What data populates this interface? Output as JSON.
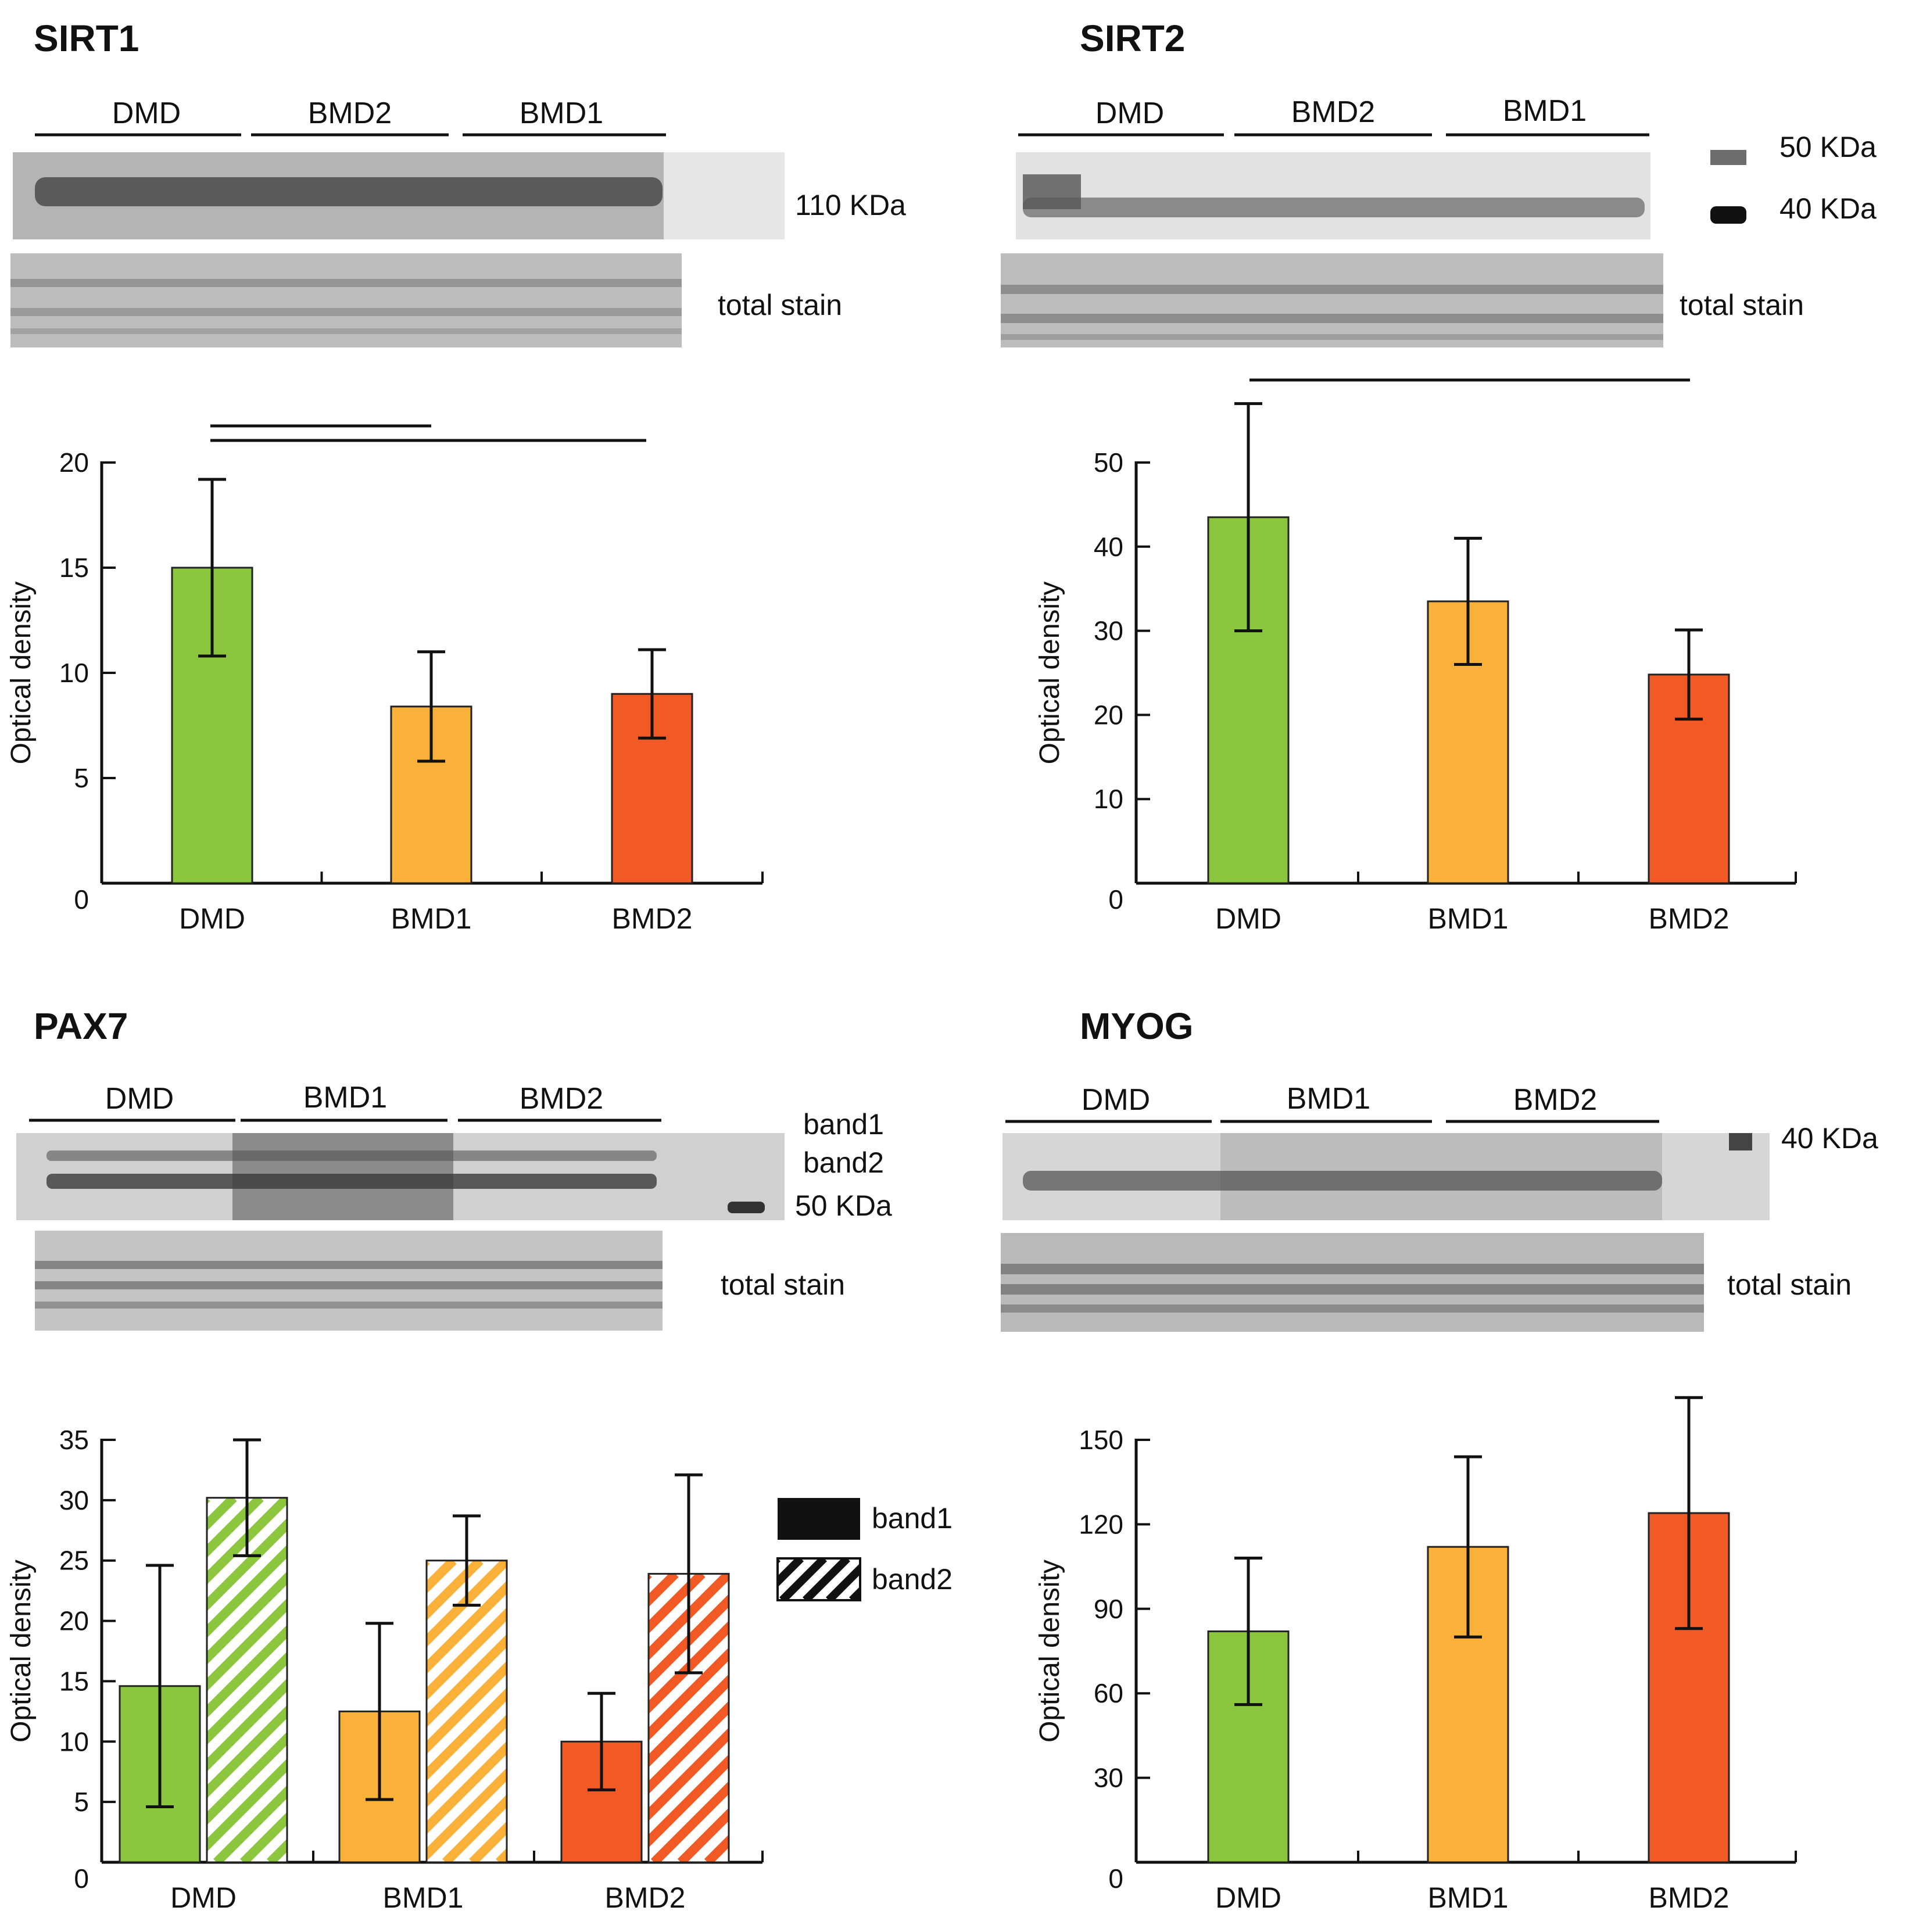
{
  "colors": {
    "DMD": "#8cc63f",
    "BMD1": "#f9b13a",
    "BMD2": "#f15a25",
    "axis": "#111111"
  },
  "panels": {
    "sirt1": {
      "title": "SIRT1",
      "lane_groups": [
        "DMD",
        "BMD2",
        "BMD1"
      ],
      "band_labels": [
        "110 KDa"
      ],
      "stain_label": "total stain"
    },
    "sirt2": {
      "title": "SIRT2",
      "lane_groups": [
        "DMD",
        "BMD2",
        "BMD1"
      ],
      "band_labels": [
        "50 KDa",
        "40 KDa"
      ],
      "stain_label": "total stain"
    },
    "pax7": {
      "title": "PAX7",
      "lane_groups": [
        "DMD",
        "BMD1",
        "BMD2"
      ],
      "band_labels": [
        "band1",
        "band2",
        "50 KDa"
      ],
      "stain_label": "total stain"
    },
    "myog": {
      "title": "MYOG",
      "lane_groups": [
        "DMD",
        "BMD1",
        "BMD2"
      ],
      "band_labels": [
        "40 KDa"
      ],
      "stain_label": "total stain"
    }
  },
  "chart_data": [
    {
      "id": "sirt1",
      "type": "bar",
      "ylabel": "Optical density",
      "ylim": [
        0,
        20
      ],
      "yticks": [
        0,
        5,
        10,
        15,
        20
      ],
      "categories": [
        "DMD",
        "BMD1",
        "BMD2"
      ],
      "series": [
        {
          "values": [
            15,
            8.4,
            9
          ],
          "errors": [
            4.2,
            2.6,
            2.1
          ],
          "hatched": false
        }
      ],
      "significance": [
        [
          0,
          1
        ],
        [
          0,
          2
        ]
      ]
    },
    {
      "id": "sirt2",
      "type": "bar",
      "ylabel": "Optical density",
      "ylim": [
        0,
        50
      ],
      "yticks": [
        0,
        10,
        20,
        30,
        40,
        50
      ],
      "categories": [
        "DMD",
        "BMD1",
        "BMD2"
      ],
      "series": [
        {
          "values": [
            43.5,
            33.5,
            24.8
          ],
          "errors": [
            13.5,
            7.5,
            5.3
          ],
          "hatched": false
        }
      ],
      "significance": [
        [
          0,
          2
        ]
      ]
    },
    {
      "id": "pax7",
      "type": "bar",
      "ylabel": "Optical density",
      "ylim": [
        0,
        35
      ],
      "yticks": [
        0,
        5,
        10,
        15,
        20,
        25,
        30,
        35
      ],
      "categories": [
        "DMD",
        "BMD1",
        "BMD2"
      ],
      "series": [
        {
          "name": "band1",
          "values": [
            14.6,
            12.5,
            10
          ],
          "errors": [
            10,
            7.3,
            4
          ],
          "hatched": false
        },
        {
          "name": "band2",
          "values": [
            30.2,
            25,
            23.9
          ],
          "errors": [
            4.8,
            3.7,
            8.2
          ],
          "hatched": true
        }
      ],
      "legend": [
        "band1",
        "band2"
      ],
      "significance": []
    },
    {
      "id": "myog",
      "type": "bar",
      "ylabel": "Optical density",
      "ylim": [
        0,
        150
      ],
      "yticks": [
        0,
        30,
        60,
        90,
        120,
        150
      ],
      "categories": [
        "DMD",
        "BMD1",
        "BMD2"
      ],
      "series": [
        {
          "values": [
            82,
            112,
            124
          ],
          "errors": [
            26,
            32,
            41
          ],
          "hatched": false
        }
      ],
      "significance": []
    }
  ]
}
